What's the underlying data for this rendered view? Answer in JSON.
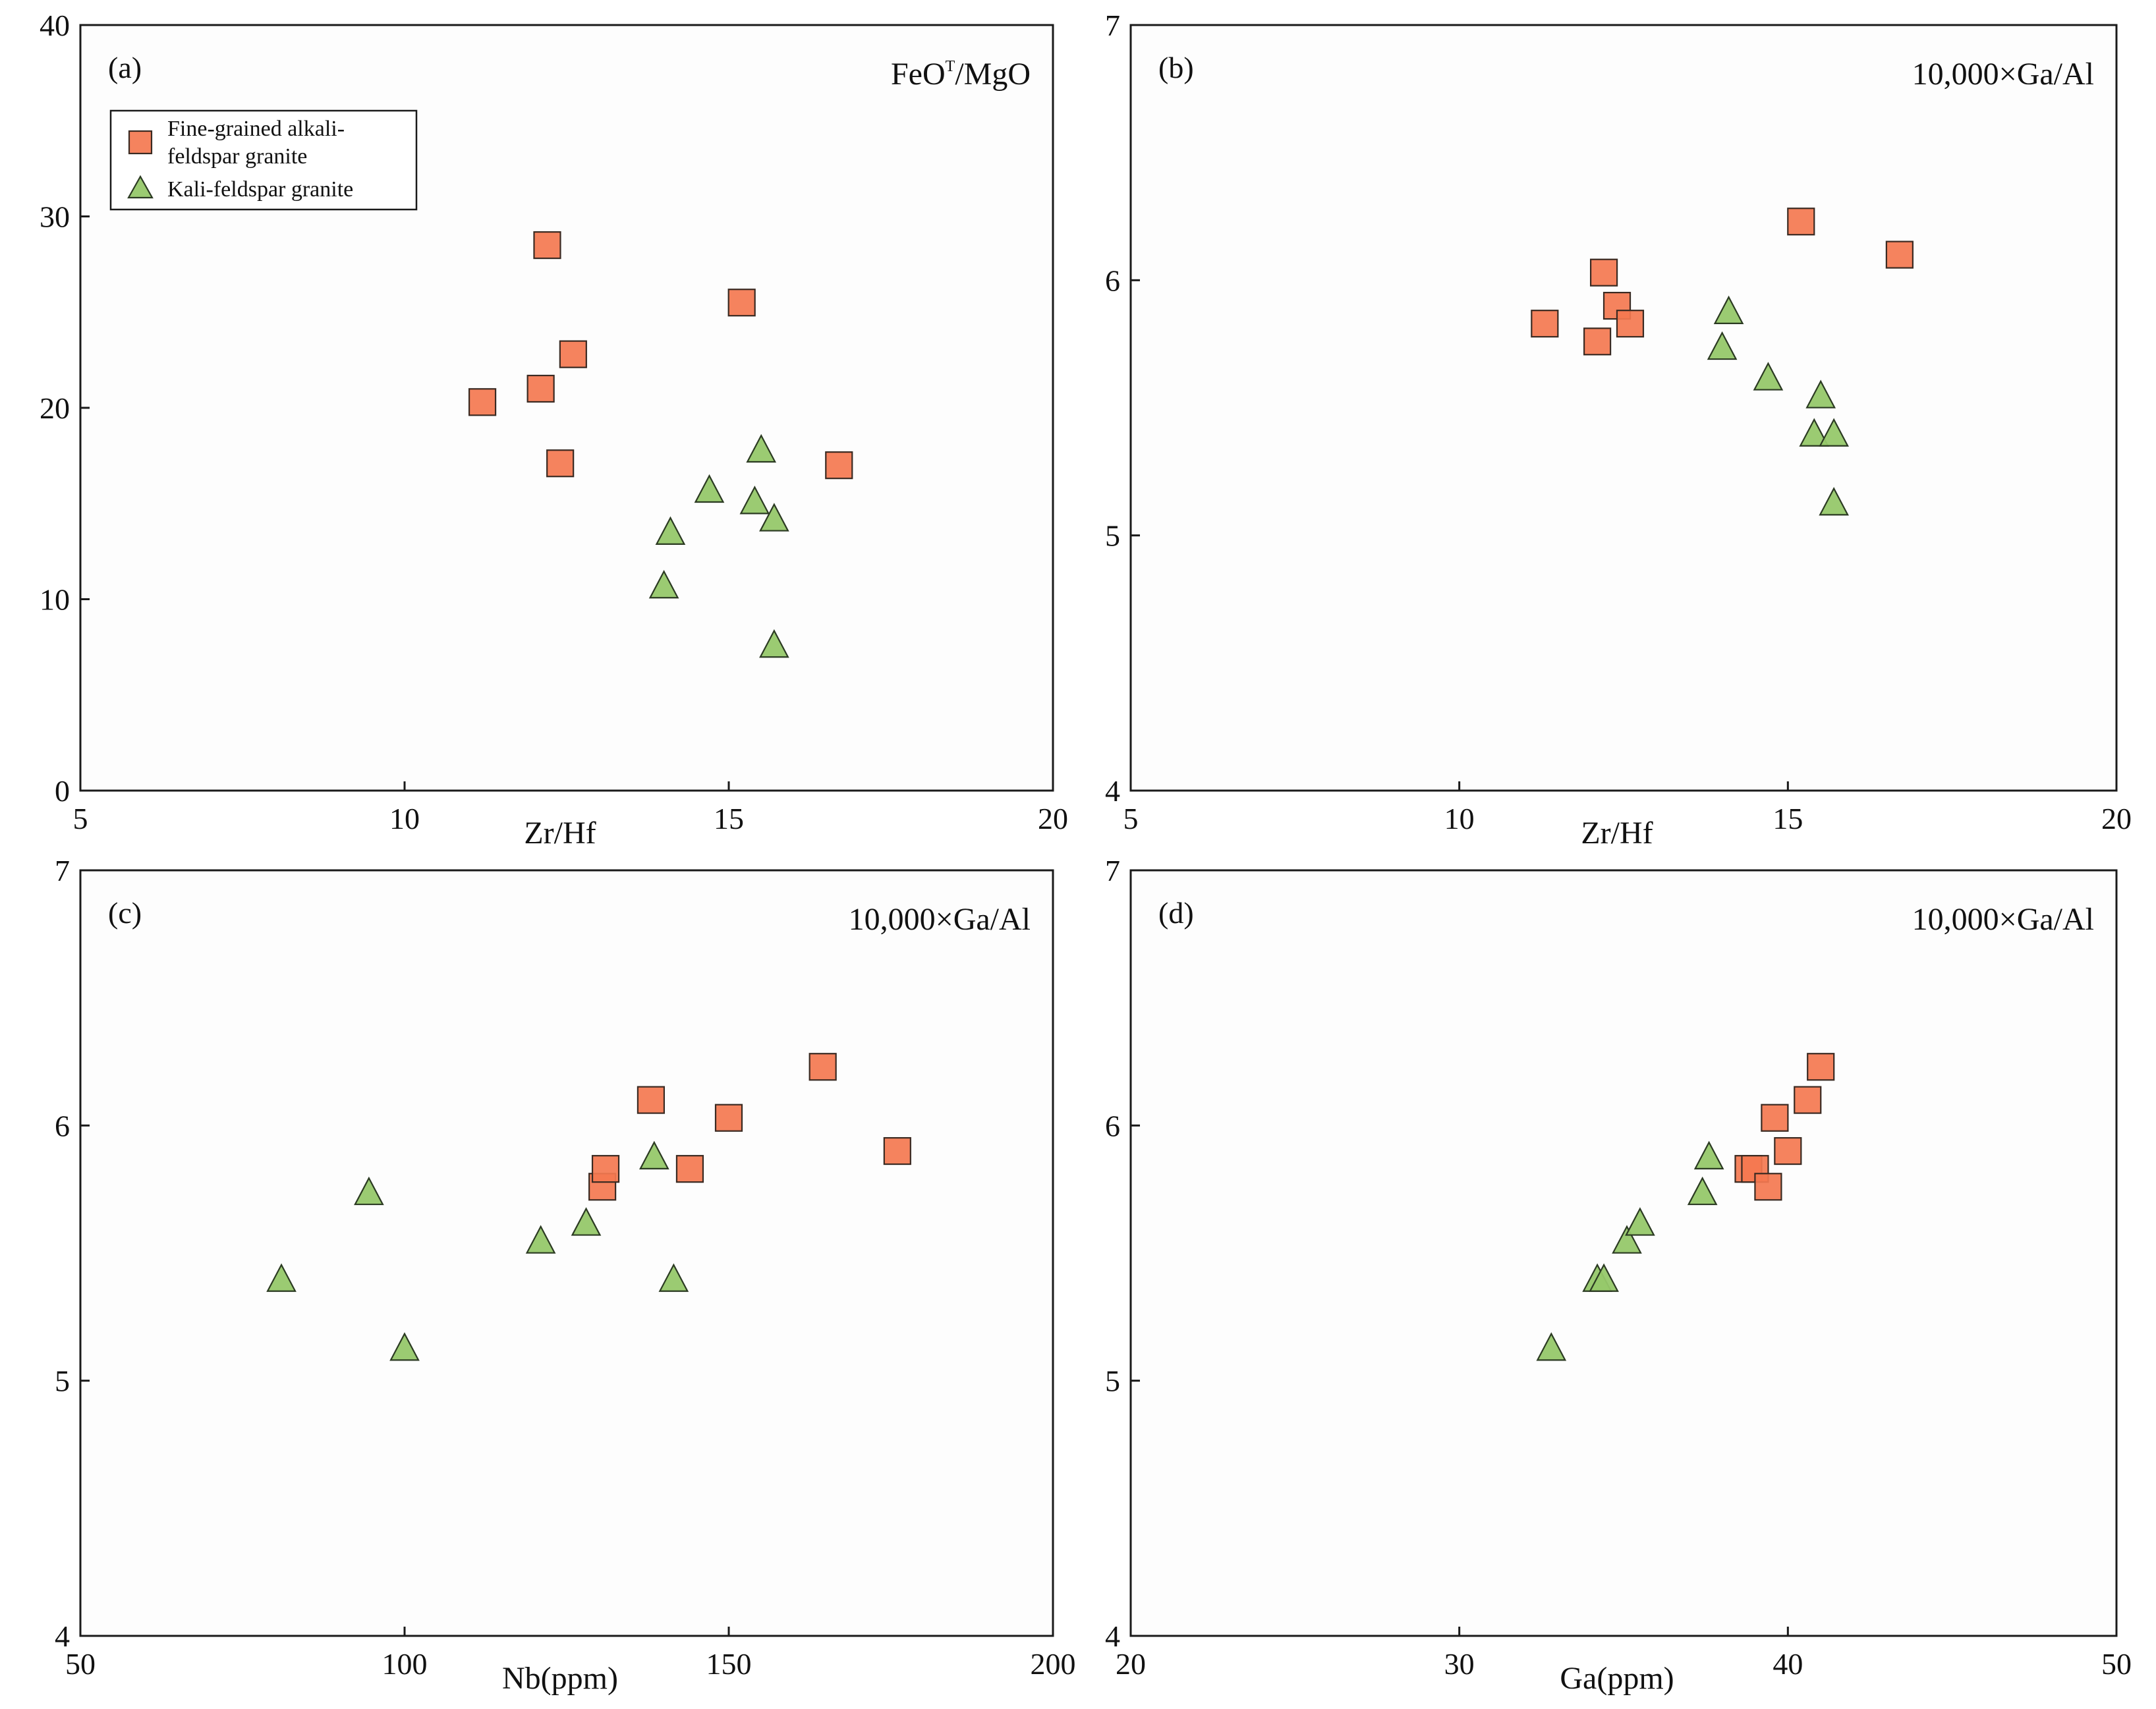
{
  "colors": {
    "fine_grained": "#f47850",
    "kali_feldspar": "#96c86a",
    "axis": "#1a1a1a"
  },
  "legend": {
    "fine_grained_line1": "Fine-grained alkali-",
    "fine_grained_line2": "feldspar granite",
    "kali_feldspar": "Kali-feldspar granite"
  },
  "chart_data": [
    {
      "type": "scatter",
      "panel": "(a)",
      "title_main": "FeO",
      "title_sup": "T",
      "title_rest": "/MgO",
      "xlabel": "Zr/Hf",
      "ylabel": "FeOT/MgO",
      "xlim": [
        5,
        20
      ],
      "ylim": [
        0,
        40
      ],
      "xticks": [
        5,
        10,
        15,
        20
      ],
      "yticks": [
        0,
        10,
        20,
        30,
        40
      ],
      "series": [
        {
          "name": "Fine-grained alkali-feldspar granite",
          "marker": "square",
          "points": [
            [
              11.2,
              20.3
            ],
            [
              12.1,
              21.0
            ],
            [
              12.2,
              28.5
            ],
            [
              12.4,
              17.1
            ],
            [
              12.6,
              22.8
            ],
            [
              15.2,
              25.5
            ],
            [
              16.7,
              17.0
            ]
          ]
        },
        {
          "name": "Kali-feldspar granite",
          "marker": "triangle",
          "points": [
            [
              14.0,
              10.6
            ],
            [
              14.1,
              13.4
            ],
            [
              14.7,
              15.6
            ],
            [
              15.4,
              15.0
            ],
            [
              15.5,
              17.7
            ],
            [
              15.7,
              14.1
            ],
            [
              15.7,
              7.5
            ]
          ]
        }
      ]
    },
    {
      "type": "scatter",
      "panel": "(b)",
      "title_main": "10,000×Ga/Al",
      "xlabel": "Zr/Hf",
      "ylabel": "10,000×Ga/Al",
      "xlim": [
        5,
        20
      ],
      "ylim": [
        4,
        7
      ],
      "xticks": [
        5,
        10,
        15,
        20
      ],
      "yticks": [
        4,
        5,
        6,
        7
      ],
      "series": [
        {
          "name": "Fine-grained alkali-feldspar granite",
          "marker": "square",
          "points": [
            [
              11.3,
              5.83
            ],
            [
              12.1,
              5.76
            ],
            [
              12.2,
              6.03
            ],
            [
              12.4,
              5.9
            ],
            [
              12.6,
              5.83
            ],
            [
              15.2,
              6.23
            ],
            [
              16.7,
              6.1
            ]
          ]
        },
        {
          "name": "Kali-feldspar granite",
          "marker": "triangle",
          "points": [
            [
              14.0,
              5.73
            ],
            [
              14.1,
              5.87
            ],
            [
              14.7,
              5.61
            ],
            [
              15.4,
              5.39
            ],
            [
              15.5,
              5.54
            ],
            [
              15.7,
              5.39
            ],
            [
              15.7,
              5.12
            ]
          ]
        }
      ]
    },
    {
      "type": "scatter",
      "panel": "(c)",
      "title_main": "10,000×Ga/Al",
      "xlabel": "Nb(ppm)",
      "ylabel": "10,000×Ga/Al",
      "xlim": [
        50,
        200
      ],
      "ylim": [
        4,
        7
      ],
      "xticks": [
        50,
        100,
        150,
        200
      ],
      "yticks": [
        4,
        5,
        6,
        7
      ],
      "series": [
        {
          "name": "Fine-grained alkali-feldspar granite",
          "marker": "square",
          "points": [
            [
              130.5,
              5.76
            ],
            [
              131,
              5.83
            ],
            [
              138,
              6.1
            ],
            [
              144,
              5.83
            ],
            [
              150,
              6.03
            ],
            [
              164.5,
              6.23
            ],
            [
              176,
              5.9
            ]
          ]
        },
        {
          "name": "Kali-feldspar granite",
          "marker": "triangle",
          "points": [
            [
              81,
              5.39
            ],
            [
              94.5,
              5.73
            ],
            [
              100,
              5.12
            ],
            [
              121,
              5.54
            ],
            [
              128,
              5.61
            ],
            [
              138.5,
              5.87
            ],
            [
              141.5,
              5.39
            ]
          ]
        }
      ]
    },
    {
      "type": "scatter",
      "panel": "(d)",
      "title_main": "10,000×Ga/Al",
      "xlabel": "Ga(ppm)",
      "ylabel": "10,000×Ga/Al",
      "xlim": [
        20,
        50
      ],
      "ylim": [
        4,
        7
      ],
      "xticks": [
        20,
        30,
        40,
        50
      ],
      "yticks": [
        4,
        5,
        6,
        7
      ],
      "series": [
        {
          "name": "Fine-grained alkali-feldspar granite",
          "marker": "square",
          "points": [
            [
              38.8,
              5.83
            ],
            [
              39.0,
              5.83
            ],
            [
              39.4,
              5.76
            ],
            [
              39.6,
              6.03
            ],
            [
              40.0,
              5.9
            ],
            [
              40.6,
              6.1
            ],
            [
              41.0,
              6.23
            ]
          ]
        },
        {
          "name": "Kali-feldspar granite",
          "marker": "triangle",
          "points": [
            [
              32.8,
              5.12
            ],
            [
              34.2,
              5.39
            ],
            [
              34.4,
              5.39
            ],
            [
              35.1,
              5.54
            ],
            [
              35.5,
              5.61
            ],
            [
              37.4,
              5.73
            ],
            [
              37.6,
              5.87
            ]
          ]
        }
      ]
    }
  ]
}
